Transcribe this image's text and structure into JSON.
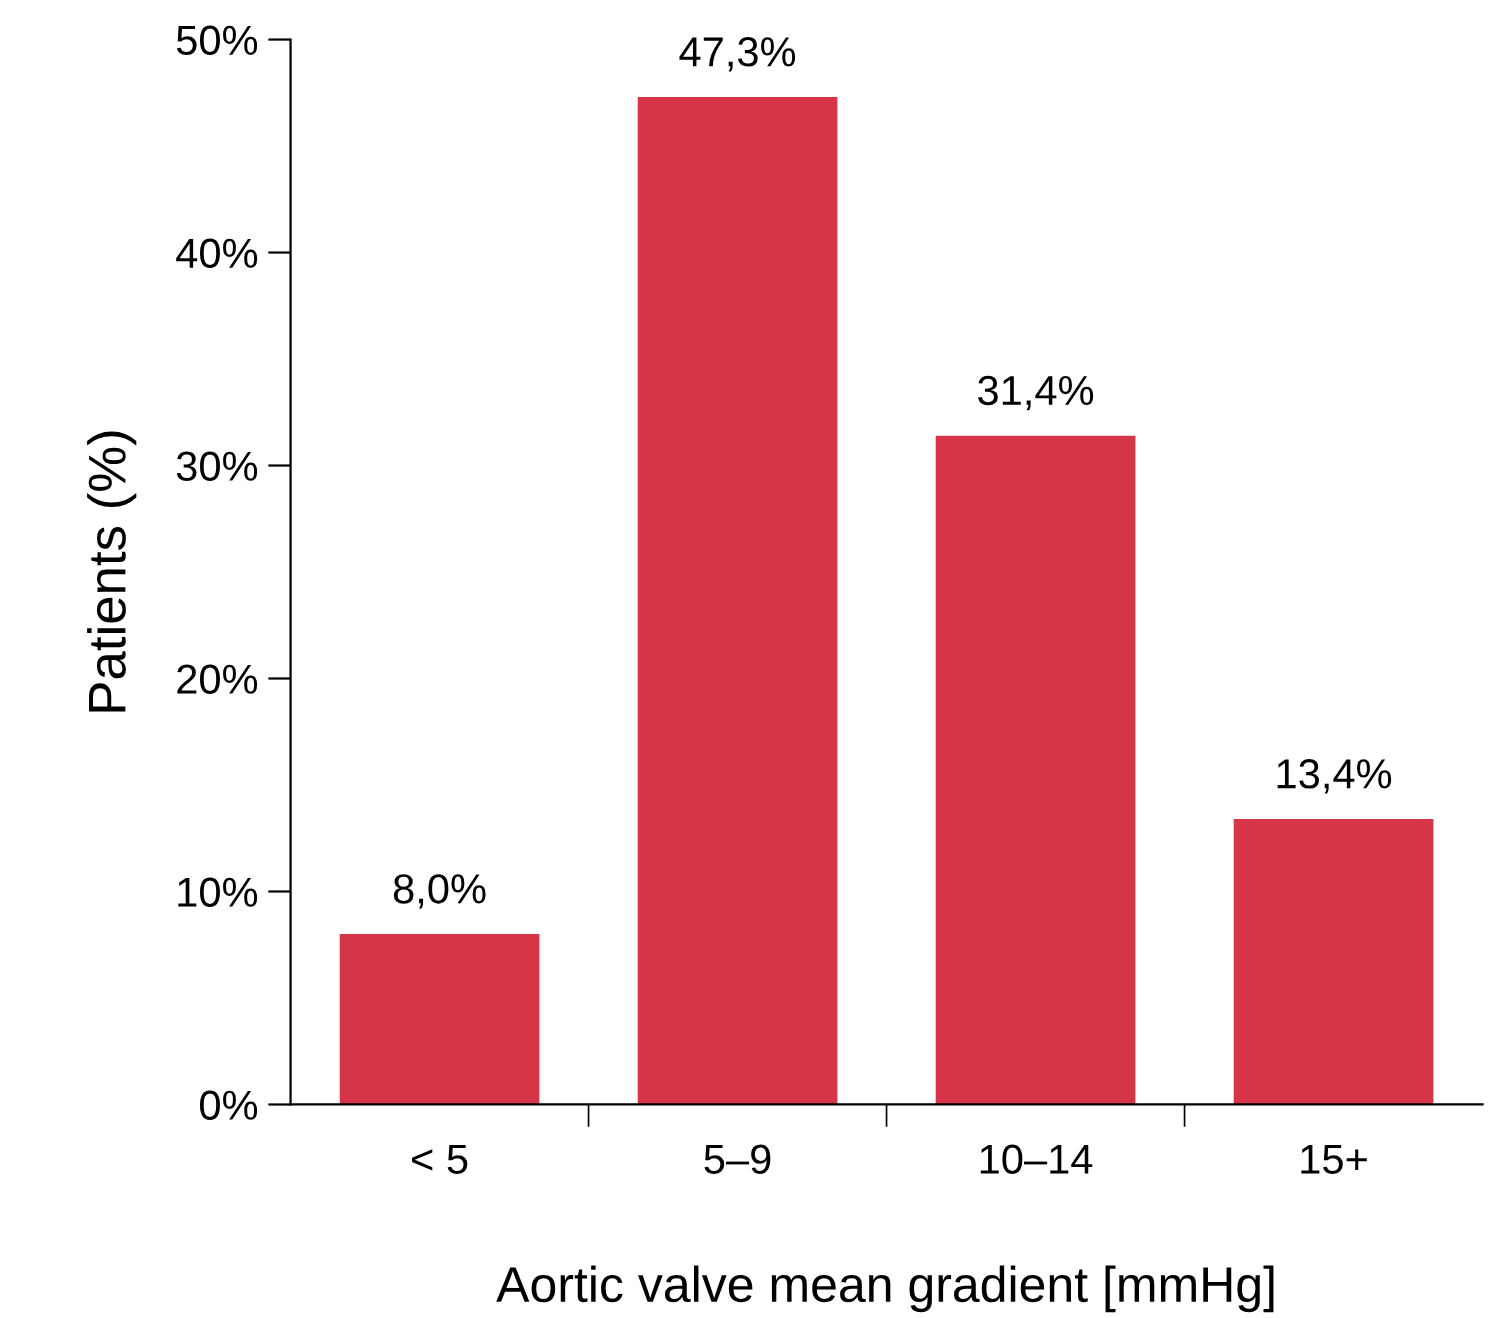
{
  "chart_data": {
    "type": "bar",
    "xlabel": "Aortic valve mean gradient [mmHg]",
    "ylabel": "Patients (%)",
    "categories": [
      "< 5",
      "5–9",
      "10–14",
      "15+"
    ],
    "values": [
      8.0,
      47.3,
      31.4,
      13.4
    ],
    "value_labels": [
      "8,0%",
      "47,3%",
      "31,4%",
      "13,4%"
    ],
    "color": "#d63447",
    "ylim": [
      0,
      50
    ],
    "yticks": [
      {
        "value": 0,
        "label": "0%"
      },
      {
        "value": 10,
        "label": "10%"
      },
      {
        "value": 20,
        "label": "20%"
      },
      {
        "value": 30,
        "label": "30%"
      },
      {
        "value": 40,
        "label": "40%"
      },
      {
        "value": 50,
        "label": "50%"
      }
    ],
    "grid": false,
    "legend": false
  }
}
